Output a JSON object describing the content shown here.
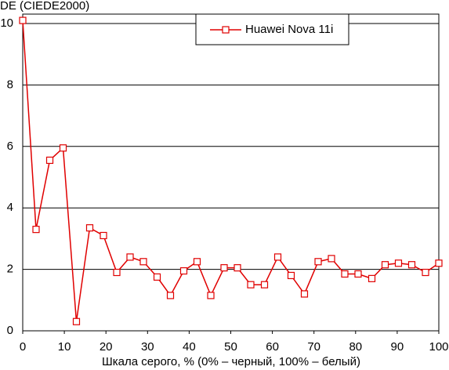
{
  "chart_data": {
    "type": "line",
    "y_label": "DE (CIEDE2000)",
    "x_label": "Шкала серого, % (0% – черный, 100% – белый)",
    "x": [
      0,
      3.2,
      6.5,
      9.7,
      12.9,
      16.1,
      19.4,
      22.6,
      25.8,
      29.0,
      32.3,
      35.5,
      38.7,
      41.9,
      45.2,
      48.4,
      51.6,
      54.8,
      58.1,
      61.3,
      64.5,
      67.7,
      71.0,
      74.2,
      77.4,
      80.6,
      83.9,
      87.1,
      90.3,
      93.5,
      96.8,
      100
    ],
    "series": [
      {
        "name": "Huawei Nova 11i",
        "color": "#e00000",
        "values": [
          10.1,
          3.3,
          5.55,
          5.95,
          0.3,
          3.35,
          3.1,
          1.9,
          2.4,
          2.25,
          1.75,
          1.15,
          1.95,
          2.25,
          1.15,
          2.05,
          2.05,
          1.5,
          1.5,
          2.4,
          1.8,
          1.2,
          2.25,
          2.35,
          1.85,
          1.85,
          1.7,
          2.15,
          2.2,
          2.15,
          1.9,
          2.2
        ]
      }
    ],
    "xlim": [
      0,
      100
    ],
    "ylim": [
      0,
      10
    ],
    "xticks": [
      0,
      10,
      20,
      30,
      40,
      50,
      60,
      70,
      80,
      90,
      100
    ],
    "yticks": [
      0,
      2,
      4,
      6,
      8,
      10
    ],
    "grid": true,
    "legend": "top"
  }
}
